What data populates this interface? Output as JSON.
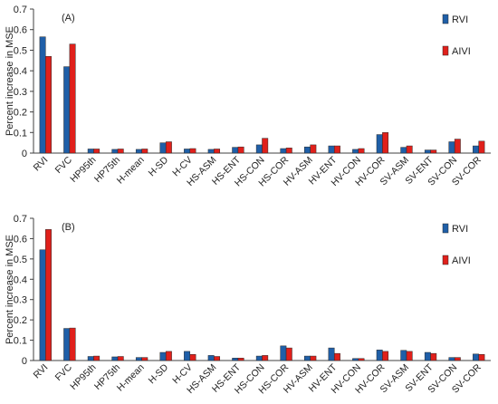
{
  "colors": {
    "RVI": "#1f5fa8",
    "AIVI": "#e0201b",
    "bar_edge": "#2a2a2a",
    "axis": "#404040"
  },
  "chart_data": [
    {
      "type": "bar",
      "panel_label": "(A)",
      "ylabel": "Percent increase in MSE",
      "ylim": [
        0,
        0.7
      ],
      "yticks": [
        "0",
        "0.1",
        "0.2",
        "0.3",
        "0.4",
        "0.5",
        "0.6",
        "0.7"
      ],
      "legend_position": "top-right",
      "categories": [
        "RVI",
        "FVC",
        "HP95th",
        "HP75th",
        "H-mean",
        "H-SD",
        "H-CV",
        "HS-ASM",
        "HS-ENT",
        "HS-CON",
        "HS-COR",
        "HV-ASM",
        "HV-ENT",
        "HV-CON",
        "HV-COR",
        "SV-ASM",
        "SV-ENT",
        "SV-CON",
        "SV-COR"
      ],
      "series": [
        {
          "name": "RVI",
          "values": [
            0.565,
            0.42,
            0.02,
            0.018,
            0.018,
            0.05,
            0.02,
            0.018,
            0.028,
            0.04,
            0.022,
            0.03,
            0.035,
            0.018,
            0.09,
            0.028,
            0.015,
            0.055,
            0.035
          ]
        },
        {
          "name": "AIVI",
          "values": [
            0.47,
            0.53,
            0.02,
            0.02,
            0.02,
            0.055,
            0.022,
            0.02,
            0.03,
            0.072,
            0.025,
            0.04,
            0.035,
            0.022,
            0.1,
            0.035,
            0.015,
            0.068,
            0.058
          ]
        }
      ]
    },
    {
      "type": "bar",
      "panel_label": "(B)",
      "ylabel": "Percent increase in MSE",
      "ylim": [
        0,
        0.7
      ],
      "yticks": [
        "0",
        "0.1",
        "0.2",
        "0.3",
        "0.4",
        "0.5",
        "0.6",
        "0.7"
      ],
      "legend_position": "top-right",
      "categories": [
        "RVI",
        "FVC",
        "HP95th",
        "HP75th",
        "H-mean",
        "H-SD",
        "H-CV",
        "HS-ASM",
        "HS-ENT",
        "HS-CON",
        "HS-COR",
        "HV-ASM",
        "HV-ENT",
        "HV-CON",
        "HV-COR",
        "SV-ASM",
        "SV-ENT",
        "SV-CON",
        "SV-COR"
      ],
      "series": [
        {
          "name": "RVI",
          "values": [
            0.545,
            0.158,
            0.02,
            0.018,
            0.015,
            0.04,
            0.045,
            0.025,
            0.012,
            0.022,
            0.072,
            0.022,
            0.062,
            0.01,
            0.052,
            0.05,
            0.04,
            0.015,
            0.032
          ]
        },
        {
          "name": "AIVI",
          "values": [
            0.645,
            0.16,
            0.022,
            0.02,
            0.015,
            0.045,
            0.03,
            0.02,
            0.012,
            0.025,
            0.062,
            0.022,
            0.035,
            0.01,
            0.045,
            0.045,
            0.035,
            0.015,
            0.03
          ]
        }
      ]
    }
  ]
}
